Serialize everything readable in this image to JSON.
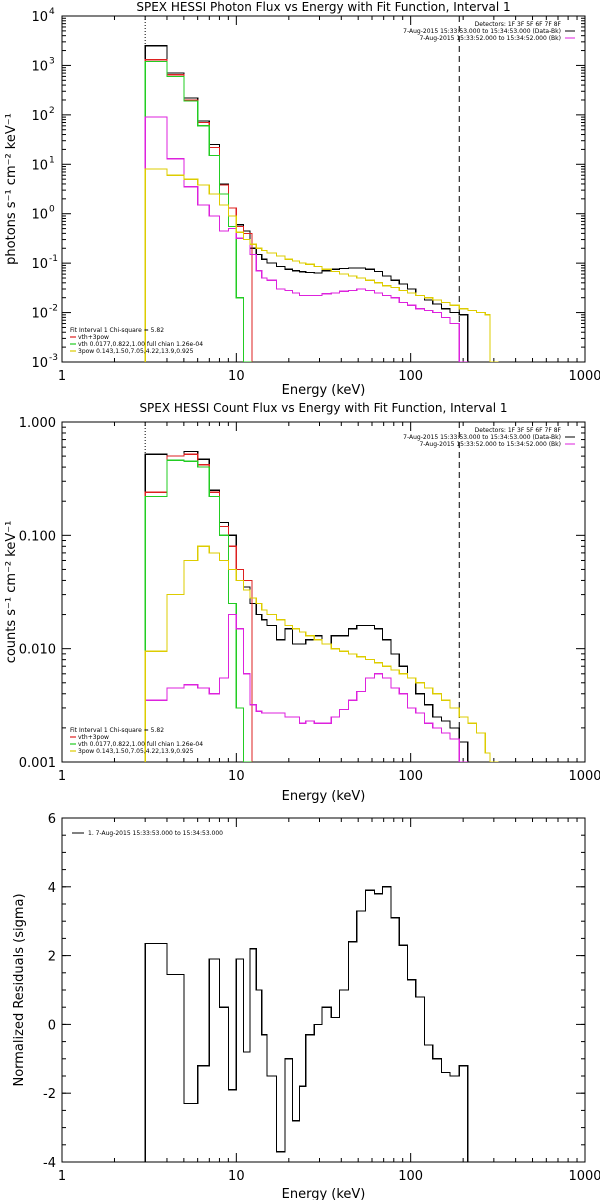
{
  "chart_data": [
    {
      "type": "line",
      "title": "SPEX HESSI Photon Flux vs Energy with Fit Function, Interval 1",
      "xlabel": "Energy (keV)",
      "ylabel": "photons s⁻¹ cm⁻² keV⁻¹",
      "xscale": "log",
      "yscale": "log",
      "xlim": [
        1,
        1000
      ],
      "ylim": [
        0.001,
        10000
      ],
      "xticklabels": [
        "1",
        "10",
        "100",
        "1000"
      ],
      "yticks": [
        0.001,
        0.01,
        0.1,
        1,
        10,
        100,
        1000,
        10000
      ],
      "yticklabels": [
        "10",
        "10",
        "10",
        "10",
        "10",
        "10",
        "10",
        "10"
      ],
      "ytickexps": [
        "-3",
        "-2",
        "-1",
        "0",
        "1",
        "2",
        "3",
        "4"
      ],
      "vlines": [
        {
          "x": 3.0,
          "style": "dotted"
        },
        {
          "x": 190,
          "style": "dashed"
        }
      ],
      "legend_top": [
        "Detectors: 1F 3F 5F 6F 7F 8F",
        "7-Aug-2015 15:33:53.000 to 15:34:53.000 (Data-Bk)",
        "7-Aug-2015 15:33:52.000 to 15:34:52.000 (Bk)"
      ],
      "legend_bottom": [
        "Fit Interval 1   Chi-square = 5.82",
        "vth+3pow",
        "vth 0.0177,0.822,1.00  full chian 1.26e-04",
        "3pow 0.143,1.50,7.05,4.22,13.9,0.925"
      ],
      "series": [
        {
          "color": "#000000",
          "x": [
            3,
            4,
            5,
            6,
            7,
            8,
            9,
            10,
            11,
            12,
            13,
            14,
            15,
            17,
            19,
            21,
            23,
            25,
            28,
            31,
            35,
            39,
            44,
            49,
            55,
            62,
            69,
            77,
            86,
            96,
            107,
            120,
            134,
            150,
            168,
            190
          ],
          "values": [
            2500,
            700,
            220,
            75,
            25,
            4,
            1.3,
            0.6,
            0.45,
            0.2,
            0.15,
            0.12,
            0.1,
            0.085,
            0.075,
            0.07,
            0.067,
            0.065,
            0.063,
            0.07,
            0.075,
            0.078,
            0.08,
            0.08,
            0.075,
            0.068,
            0.055,
            0.045,
            0.038,
            0.03,
            0.022,
            0.018,
            0.015,
            0.012,
            0.01,
            0.009
          ]
        },
        {
          "color": "#dd2020",
          "x": [
            3,
            4,
            5,
            6,
            7,
            8,
            9,
            10,
            11
          ],
          "values": [
            1300,
            650,
            200,
            70,
            22,
            3.8,
            1.3,
            0.55,
            0.4
          ]
        },
        {
          "color": "#22cc22",
          "x": [
            3,
            4,
            5,
            6,
            7,
            8,
            9,
            10,
            11
          ],
          "values": [
            1200,
            600,
            190,
            60,
            15,
            2.5,
            0.55,
            0.02,
            0.001
          ]
        },
        {
          "color": "#dd22dd",
          "x": [
            3,
            4,
            5,
            6,
            7,
            8,
            9,
            10,
            11,
            12,
            13,
            14,
            15,
            17,
            19,
            21,
            23,
            25,
            28,
            31,
            35,
            39,
            44,
            49,
            55,
            62,
            69,
            77,
            86,
            96,
            107,
            120,
            134,
            150,
            168,
            190
          ],
          "values": [
            90,
            13,
            3.5,
            1.5,
            0.9,
            0.45,
            0.5,
            0.32,
            0.3,
            0.15,
            0.07,
            0.05,
            0.045,
            0.03,
            0.028,
            0.025,
            0.022,
            0.022,
            0.022,
            0.024,
            0.025,
            0.027,
            0.028,
            0.03,
            0.028,
            0.025,
            0.022,
            0.02,
            0.016,
            0.014,
            0.012,
            0.011,
            0.01,
            0.008,
            0.006,
            0.001
          ]
        },
        {
          "color": "#ddcc00",
          "x": [
            3,
            4,
            5,
            6,
            7,
            8,
            9,
            10,
            11,
            12,
            13,
            14,
            15,
            17,
            19,
            21,
            23,
            25,
            28,
            31,
            35,
            39,
            44,
            49,
            55,
            62,
            69,
            77,
            86,
            96,
            107,
            120,
            134,
            150,
            168,
            190,
            213,
            239,
            268,
            285
          ],
          "values": [
            8,
            6,
            5,
            3.8,
            2.5,
            1.5,
            0.9,
            0.42,
            0.3,
            0.24,
            0.2,
            0.18,
            0.16,
            0.14,
            0.12,
            0.11,
            0.1,
            0.095,
            0.085,
            0.075,
            0.068,
            0.06,
            0.055,
            0.05,
            0.045,
            0.04,
            0.035,
            0.032,
            0.028,
            0.025,
            0.022,
            0.02,
            0.018,
            0.016,
            0.014,
            0.012,
            0.011,
            0.01,
            0.009,
            0.001
          ]
        }
      ]
    },
    {
      "type": "line",
      "title": "SPEX HESSI Count Flux vs Energy with Fit Function, Interval 1",
      "xlabel": "Energy (keV)",
      "ylabel": "counts s⁻¹ cm⁻² keV⁻¹",
      "xscale": "log",
      "yscale": "log",
      "xlim": [
        1,
        1000
      ],
      "ylim": [
        0.001,
        1
      ],
      "xticklabels": [
        "1",
        "10",
        "100",
        "1000"
      ],
      "yticks": [
        0.001,
        0.01,
        0.1,
        1
      ],
      "yticklabels": [
        "0.001",
        "0.010",
        "0.100",
        "1.000"
      ],
      "vlines": [
        {
          "x": 3.0,
          "style": "dotted"
        },
        {
          "x": 190,
          "style": "dashed"
        }
      ],
      "legend_top": [
        "Detectors: 1F 3F 5F 6F 7F 8F",
        "7-Aug-2015 15:33:53.000 to 15:34:53.000 (Data-Bk)",
        "7-Aug-2015 15:33:52.000 to 15:34:52.000 (Bk)"
      ],
      "legend_bottom": [
        "Fit Interval 1   Chi-square = 5.82",
        "vth+3pow",
        "vth 0.0177,0.822,1.00  full chian 1.26e-04",
        "3pow 0.143,1.50,7.05,4.22,13.9,0.925"
      ],
      "series": [
        {
          "color": "#000000",
          "x": [
            3,
            4,
            5,
            6,
            7,
            8,
            9,
            10,
            11,
            12,
            13,
            14,
            15,
            17,
            19,
            21,
            23,
            25,
            28,
            31,
            35,
            39,
            44,
            49,
            55,
            62,
            69,
            77,
            86,
            96,
            107,
            120,
            134,
            150,
            168,
            190
          ],
          "values": [
            0.52,
            0.5,
            0.55,
            0.47,
            0.25,
            0.13,
            0.1,
            0.05,
            0.035,
            0.025,
            0.02,
            0.018,
            0.016,
            0.012,
            0.015,
            0.011,
            0.011,
            0.012,
            0.013,
            0.011,
            0.013,
            0.013,
            0.015,
            0.016,
            0.016,
            0.015,
            0.012,
            0.009,
            0.007,
            0.0055,
            0.004,
            0.0032,
            0.0025,
            0.0023,
            0.002,
            0.0015
          ]
        },
        {
          "color": "#dd2020",
          "x": [
            3,
            4,
            5,
            6,
            7,
            8,
            9,
            10,
            11
          ],
          "values": [
            0.24,
            0.5,
            0.52,
            0.42,
            0.24,
            0.12,
            0.08,
            0.05,
            0.04
          ]
        },
        {
          "color": "#22cc22",
          "x": [
            3,
            4,
            5,
            6,
            7,
            8,
            9,
            10,
            11
          ],
          "values": [
            0.22,
            0.46,
            0.45,
            0.4,
            0.22,
            0.1,
            0.025,
            0.003,
            0.001
          ]
        },
        {
          "color": "#dd22dd",
          "x": [
            3,
            4,
            5,
            6,
            7,
            8,
            9,
            10,
            11,
            12,
            13,
            14,
            15,
            17,
            19,
            21,
            23,
            25,
            28,
            31,
            35,
            39,
            44,
            49,
            55,
            62,
            69,
            77,
            86,
            96,
            107,
            120,
            134,
            150,
            168,
            190
          ],
          "values": [
            0.0035,
            0.0045,
            0.0048,
            0.0045,
            0.004,
            0.0055,
            0.02,
            0.015,
            0.006,
            0.0032,
            0.0028,
            0.0027,
            0.0027,
            0.0027,
            0.0025,
            0.0025,
            0.0022,
            0.0023,
            0.0022,
            0.0022,
            0.0025,
            0.0029,
            0.0035,
            0.0042,
            0.0055,
            0.006,
            0.0055,
            0.0045,
            0.004,
            0.003,
            0.0027,
            0.0022,
            0.002,
            0.0018,
            0.0016,
            0.001
          ]
        },
        {
          "color": "#ddcc00",
          "x": [
            3,
            4,
            5,
            6,
            7,
            8,
            9,
            10,
            11,
            12,
            13,
            14,
            15,
            17,
            19,
            21,
            23,
            25,
            28,
            31,
            35,
            39,
            44,
            49,
            55,
            62,
            69,
            77,
            86,
            96,
            107,
            120,
            134,
            150,
            168,
            190,
            213,
            239,
            268,
            285
          ],
          "values": [
            0.0095,
            0.03,
            0.06,
            0.08,
            0.07,
            0.06,
            0.05,
            0.04,
            0.033,
            0.028,
            0.025,
            0.022,
            0.02,
            0.018,
            0.016,
            0.015,
            0.014,
            0.013,
            0.012,
            0.011,
            0.01,
            0.0095,
            0.009,
            0.0085,
            0.008,
            0.0075,
            0.007,
            0.0065,
            0.006,
            0.0055,
            0.005,
            0.0045,
            0.004,
            0.0035,
            0.003,
            0.0025,
            0.0022,
            0.0018,
            0.0012,
            0.001
          ]
        }
      ]
    },
    {
      "type": "line",
      "title": "",
      "xlabel": "Energy (keV)",
      "ylabel": "Normalized Residuals (sigma)",
      "xscale": "log",
      "yscale": "linear",
      "xlim": [
        1,
        1000
      ],
      "ylim": [
        -4,
        6
      ],
      "xticklabels": [
        "1",
        "10",
        "100",
        "1000"
      ],
      "yticks": [
        -4,
        -2,
        0,
        2,
        4,
        6
      ],
      "yticklabels": [
        "-4",
        "-2",
        "0",
        "2",
        "4",
        "6"
      ],
      "vlines": [],
      "legend_top": [
        "1.  7-Aug-2015 15:33:53.000 to 15:34:53.000"
      ],
      "legend_bottom": [],
      "series": [
        {
          "color": "#000000",
          "x": [
            3,
            4,
            5,
            6,
            7,
            8,
            9,
            10,
            11,
            12,
            13,
            14,
            15,
            17,
            19,
            21,
            23,
            25,
            28,
            31,
            35,
            39,
            44,
            49,
            55,
            62,
            69,
            77,
            86,
            96,
            107,
            120,
            134,
            150,
            168,
            190
          ],
          "values": [
            2.35,
            1.45,
            -2.3,
            -1.2,
            1.9,
            0.5,
            -1.9,
            1.9,
            -0.8,
            2.2,
            1.0,
            -0.3,
            -1.5,
            -3.7,
            -1.0,
            -2.8,
            -1.8,
            -0.3,
            0.0,
            0.5,
            0.2,
            1.0,
            2.4,
            3.3,
            3.9,
            3.8,
            4.0,
            3.1,
            2.3,
            1.3,
            0.8,
            -0.6,
            -1.0,
            -1.4,
            -1.5,
            -1.2
          ]
        }
      ]
    }
  ]
}
